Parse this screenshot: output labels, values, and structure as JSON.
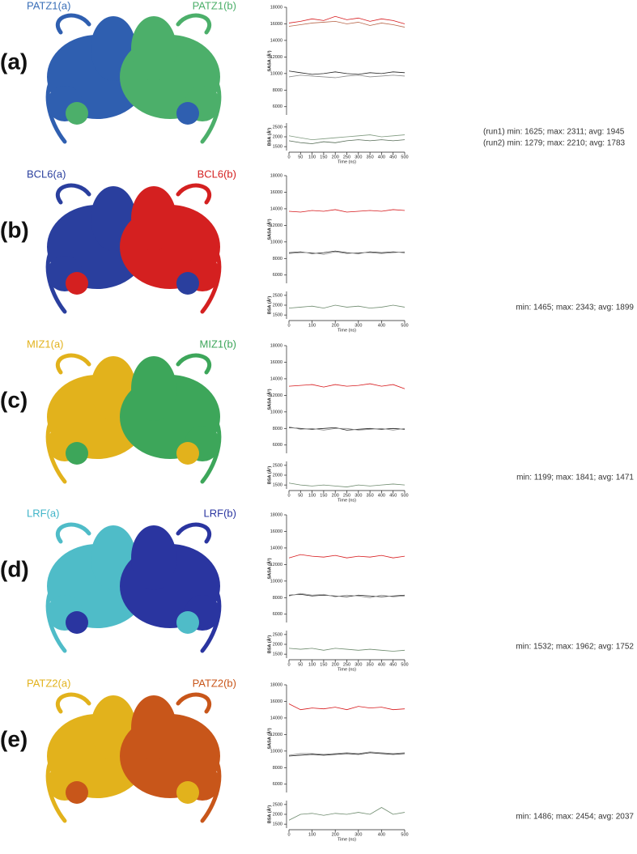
{
  "panels": [
    {
      "label": "(a)",
      "chain_a": "PATZ1(a)",
      "chain_b": "PATZ1(b)",
      "stats": [
        "(run1) min: 1625; max: 2311; avg: 1945",
        "(run2) min: 1279; max: 2210; avg: 1783"
      ]
    },
    {
      "label": "(b)",
      "chain_a": "BCL6(a)",
      "chain_b": "BCL6(b)",
      "stats": [
        "min: 1465; max: 2343; avg: 1899"
      ]
    },
    {
      "label": "(c)",
      "chain_a": "MIZ1(a)",
      "chain_b": "MIZ1(b)",
      "stats": [
        "min: 1199; max: 1841; avg: 1471"
      ]
    },
    {
      "label": "(d)",
      "chain_a": "LRF(a)",
      "chain_b": "LRF(b)",
      "stats": [
        "min: 1532; max: 1962; avg: 1752"
      ]
    },
    {
      "label": "(e)",
      "chain_a": "PATZ2(a)",
      "chain_b": "PATZ2(b)",
      "stats": [
        "min: 1486; max: 2454; avg: 2037"
      ]
    }
  ],
  "chart_data": [
    {
      "type": "line",
      "ylabel": "SASA (Å²)",
      "x": [
        0,
        50,
        100,
        150,
        200,
        250,
        300,
        350,
        400,
        450,
        500
      ],
      "xlim": [
        0,
        500
      ],
      "ylim": [
        5000,
        18000
      ],
      "yticks": [
        6000,
        8000,
        10000,
        12000,
        14000,
        16000,
        18000
      ],
      "series": [
        {
          "color": "#d7191c",
          "values": [
            16100,
            16300,
            16600,
            16400,
            16900,
            16500,
            16700,
            16300,
            16600,
            16400,
            16000
          ]
        },
        {
          "color": "#b8664a",
          "values": [
            15700,
            15900,
            16100,
            16200,
            16300,
            16000,
            16200,
            15800,
            16100,
            15900,
            15600
          ]
        },
        {
          "color": "#222222",
          "values": [
            10300,
            10100,
            9900,
            10000,
            10200,
            10000,
            9900,
            10100,
            10000,
            10200,
            10100
          ]
        },
        {
          "color": "#8a8a8a",
          "values": [
            9600,
            9800,
            9700,
            9600,
            9500,
            9700,
            9800,
            9600,
            9700,
            9800,
            9700
          ]
        }
      ]
    },
    {
      "type": "line",
      "ylabel": "BSA (Å²)",
      "xlabel": "Time (ns)",
      "x": [
        0,
        50,
        100,
        150,
        200,
        250,
        300,
        350,
        400,
        450,
        500
      ],
      "xlim": [
        0,
        500
      ],
      "xticks": [
        0,
        50,
        100,
        150,
        200,
        250,
        300,
        350,
        400,
        450,
        500
      ],
      "ylim": [
        1300,
        2700
      ],
      "yticks": [
        1500,
        2000,
        2500
      ],
      "series": [
        {
          "color": "#7f9a7f",
          "values": [
            2050,
            1950,
            1850,
            1900,
            1950,
            2000,
            2050,
            2100,
            2000,
            2050,
            2100
          ]
        },
        {
          "color": "#556b55",
          "values": [
            1800,
            1700,
            1650,
            1750,
            1700,
            1800,
            1850,
            1800,
            1850,
            1800,
            1850
          ]
        }
      ]
    },
    {
      "type": "line",
      "ylabel": "SASA (Å²)",
      "x": [
        0,
        50,
        100,
        150,
        200,
        250,
        300,
        350,
        400,
        450,
        500
      ],
      "xlim": [
        0,
        500
      ],
      "ylim": [
        5000,
        18000
      ],
      "yticks": [
        6000,
        8000,
        10000,
        12000,
        14000,
        16000,
        18000
      ],
      "series": [
        {
          "color": "#d7191c",
          "values": [
            13700,
            13600,
            13800,
            13700,
            13900,
            13600,
            13700,
            13800,
            13700,
            13900,
            13800
          ]
        },
        {
          "color": "#222222",
          "values": [
            8700,
            8800,
            8600,
            8700,
            8900,
            8700,
            8600,
            8800,
            8700,
            8800,
            8700
          ]
        },
        {
          "color": "#8a8a8a",
          "values": [
            8600,
            8700,
            8700,
            8500,
            8800,
            8600,
            8700,
            8700,
            8600,
            8700,
            8800
          ]
        }
      ]
    },
    {
      "type": "line",
      "ylabel": "BSA (Å²)",
      "xlabel": "Time (ns)",
      "x": [
        0,
        50,
        100,
        150,
        200,
        250,
        300,
        350,
        400,
        450,
        500
      ],
      "xlim": [
        0,
        500
      ],
      "xticks": [
        0,
        100,
        200,
        300,
        400,
        500
      ],
      "ylim": [
        1300,
        2700
      ],
      "yticks": [
        1500,
        2000,
        2500
      ],
      "series": [
        {
          "color": "#6e8b6e",
          "values": [
            1850,
            1900,
            1950,
            1850,
            2000,
            1900,
            1950,
            1850,
            1900,
            2000,
            1900
          ]
        }
      ]
    },
    {
      "type": "line",
      "ylabel": "SASA (Å²)",
      "x": [
        0,
        50,
        100,
        150,
        200,
        250,
        300,
        350,
        400,
        450,
        500
      ],
      "xlim": [
        0,
        500
      ],
      "ylim": [
        5000,
        18000
      ],
      "yticks": [
        6000,
        8000,
        10000,
        12000,
        14000,
        16000,
        18000
      ],
      "series": [
        {
          "color": "#d7191c",
          "values": [
            13100,
            13200,
            13300,
            13000,
            13300,
            13100,
            13200,
            13400,
            13100,
            13300,
            12800
          ]
        },
        {
          "color": "#222222",
          "values": [
            8100,
            8000,
            7900,
            8000,
            8100,
            7800,
            7900,
            8000,
            7900,
            8000,
            7900
          ]
        },
        {
          "color": "#8a8a8a",
          "values": [
            8200,
            7900,
            8000,
            7800,
            8000,
            8000,
            7800,
            7900,
            8000,
            7800,
            8000
          ]
        }
      ]
    },
    {
      "type": "line",
      "ylabel": "BSA (Å²)",
      "xlabel": "Time (ns)",
      "x": [
        0,
        50,
        100,
        150,
        200,
        250,
        300,
        350,
        400,
        450,
        500
      ],
      "xlim": [
        0,
        500
      ],
      "xticks": [
        0,
        50,
        100,
        150,
        200,
        250,
        300,
        350,
        400,
        450,
        500
      ],
      "ylim": [
        1300,
        2700
      ],
      "yticks": [
        1500,
        2000,
        2500
      ],
      "series": [
        {
          "color": "#6e8b6e",
          "values": [
            1600,
            1500,
            1450,
            1500,
            1450,
            1400,
            1500,
            1450,
            1500,
            1550,
            1500
          ]
        }
      ]
    },
    {
      "type": "line",
      "ylabel": "SASA (Å²)",
      "x": [
        0,
        50,
        100,
        150,
        200,
        250,
        300,
        350,
        400,
        450,
        500
      ],
      "xlim": [
        0,
        500
      ],
      "ylim": [
        5000,
        18000
      ],
      "yticks": [
        6000,
        8000,
        10000,
        12000,
        14000,
        16000,
        18000
      ],
      "series": [
        {
          "color": "#d7191c",
          "values": [
            12800,
            13200,
            13000,
            12900,
            13100,
            12800,
            13000,
            12900,
            13100,
            12800,
            13000
          ]
        },
        {
          "color": "#222222",
          "values": [
            8300,
            8400,
            8200,
            8300,
            8200,
            8100,
            8300,
            8200,
            8100,
            8200,
            8300
          ]
        },
        {
          "color": "#8a8a8a",
          "values": [
            8200,
            8500,
            8300,
            8400,
            8100,
            8300,
            8200,
            8000,
            8300,
            8100,
            8200
          ]
        }
      ]
    },
    {
      "type": "line",
      "ylabel": "BSA (Å²)",
      "xlabel": "Time (ns)",
      "x": [
        0,
        50,
        100,
        150,
        200,
        250,
        300,
        350,
        400,
        450,
        500
      ],
      "xlim": [
        0,
        500
      ],
      "xticks": [
        0,
        50,
        100,
        150,
        200,
        250,
        300,
        350,
        400,
        450,
        500
      ],
      "ylim": [
        1300,
        2700
      ],
      "yticks": [
        1500,
        2000,
        2500
      ],
      "series": [
        {
          "color": "#6e8b6e",
          "values": [
            1800,
            1750,
            1800,
            1700,
            1800,
            1750,
            1700,
            1750,
            1700,
            1650,
            1700
          ]
        }
      ]
    },
    {
      "type": "line",
      "ylabel": "SASA (Å²)",
      "x": [
        0,
        50,
        100,
        150,
        200,
        250,
        300,
        350,
        400,
        450,
        500
      ],
      "xlim": [
        0,
        500
      ],
      "ylim": [
        5000,
        18000
      ],
      "yticks": [
        6000,
        8000,
        10000,
        12000,
        14000,
        16000,
        18000
      ],
      "series": [
        {
          "color": "#d7191c",
          "values": [
            15700,
            15000,
            15200,
            15100,
            15300,
            15000,
            15400,
            15200,
            15300,
            15000,
            15100
          ]
        },
        {
          "color": "#222222",
          "values": [
            9400,
            9500,
            9600,
            9500,
            9600,
            9700,
            9600,
            9800,
            9700,
            9600,
            9700
          ]
        },
        {
          "color": "#8a8a8a",
          "values": [
            9500,
            9700,
            9700,
            9600,
            9700,
            9800,
            9700,
            9900,
            9800,
            9700,
            9800
          ]
        }
      ]
    },
    {
      "type": "line",
      "ylabel": "BSA (Å²)",
      "xlabel": "Time (ns)",
      "x": [
        0,
        50,
        100,
        150,
        200,
        250,
        300,
        350,
        400,
        450,
        500
      ],
      "xlim": [
        0,
        500
      ],
      "xticks": [
        0,
        100,
        200,
        300,
        400,
        500
      ],
      "ylim": [
        1300,
        2700
      ],
      "yticks": [
        1500,
        2000,
        2500
      ],
      "series": [
        {
          "color": "#6e8b6e",
          "values": [
            1700,
            2000,
            2050,
            1950,
            2050,
            2000,
            2100,
            2000,
            2350,
            2000,
            2100
          ]
        }
      ]
    }
  ]
}
